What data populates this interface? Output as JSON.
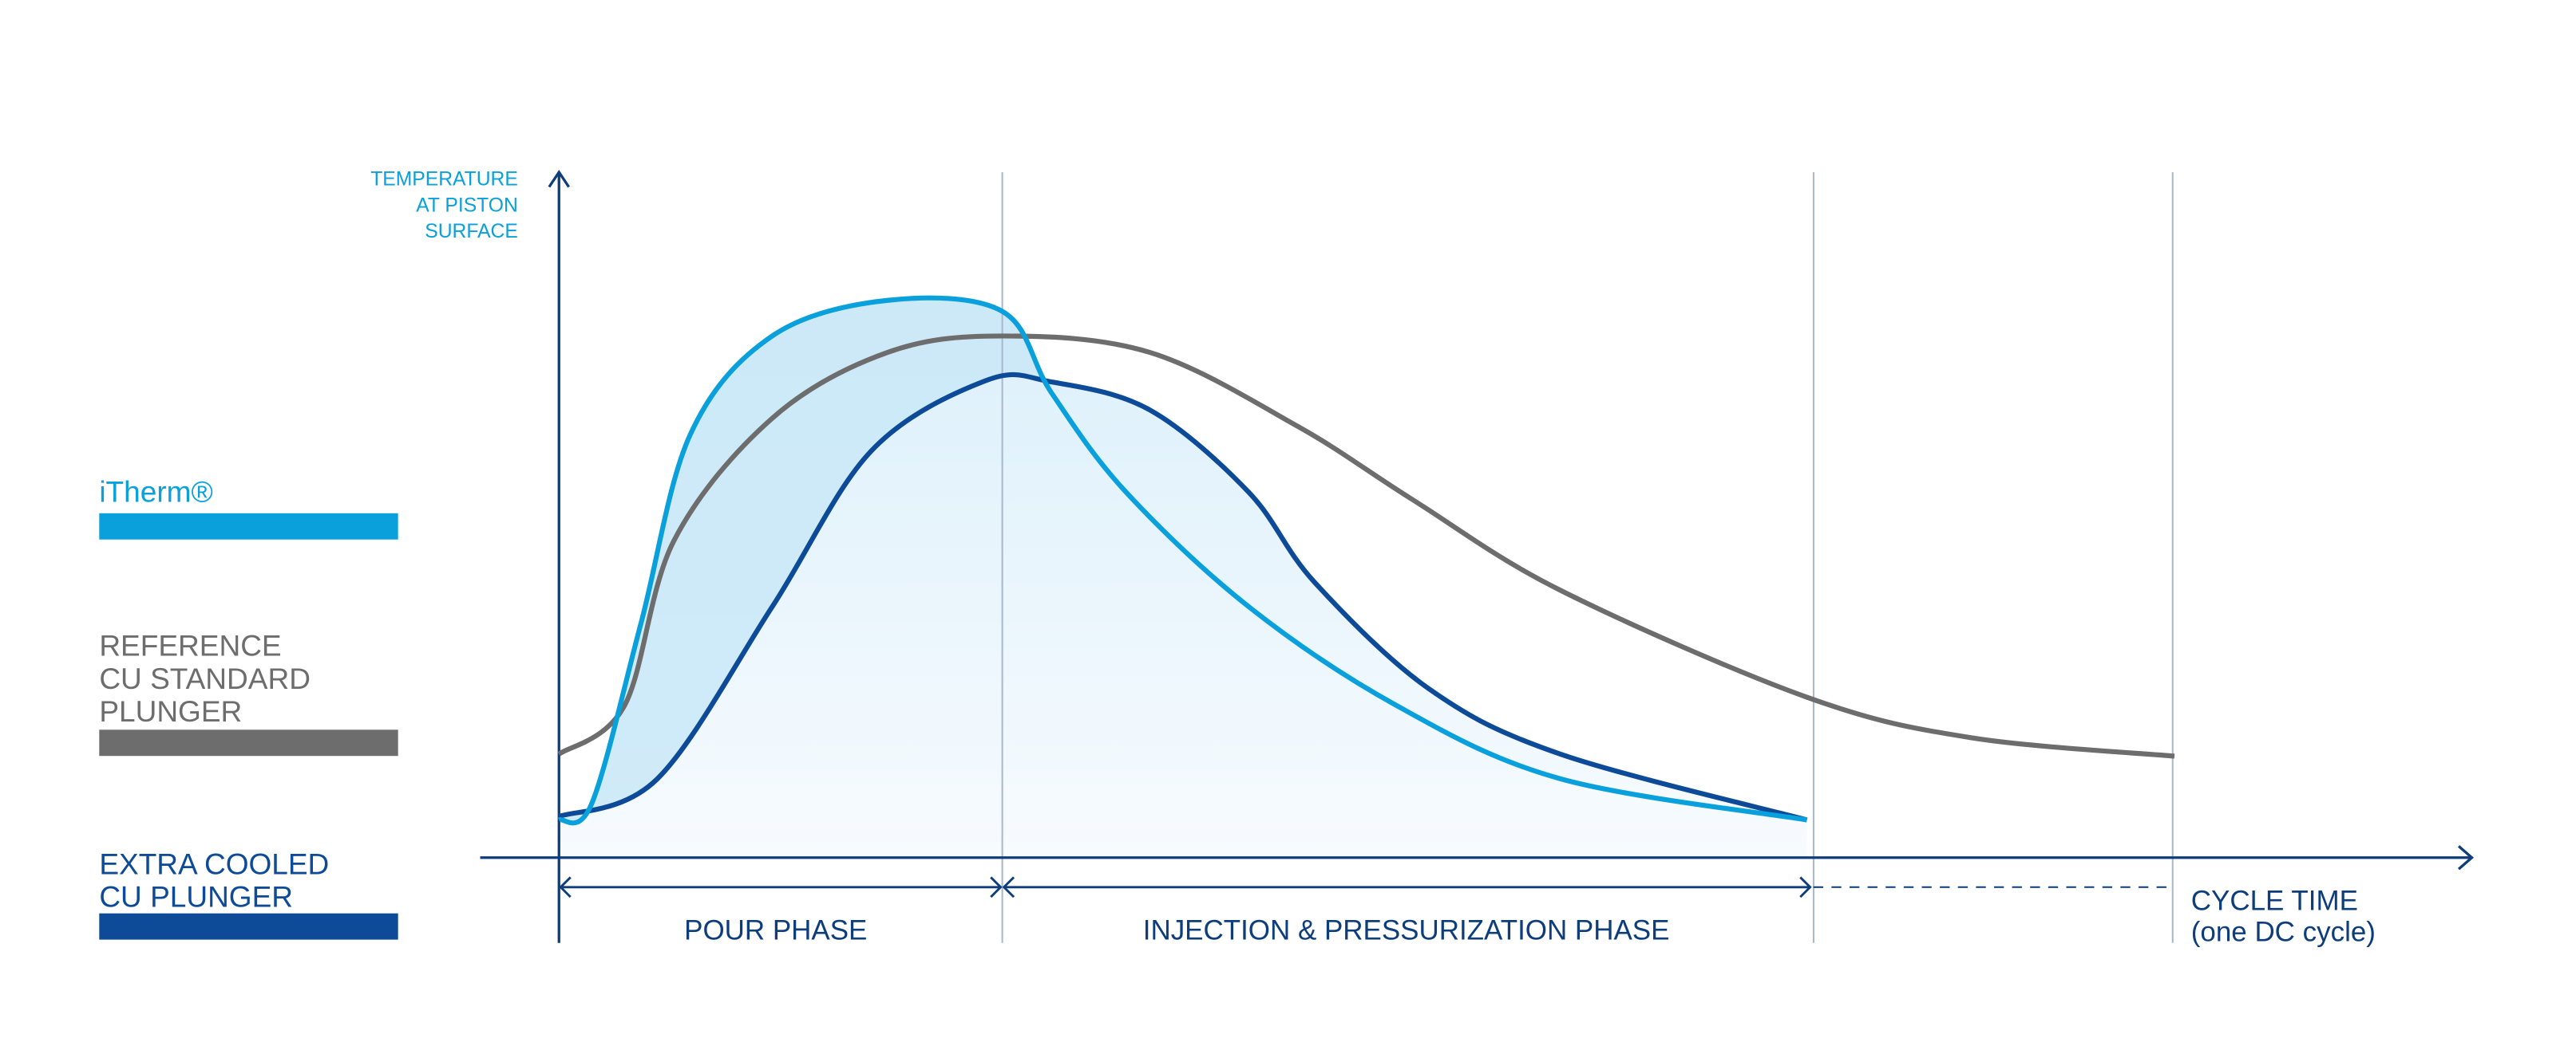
{
  "chart_data": {
    "type": "line",
    "title": "",
    "ylabel": [
      "TEMPERATURE",
      "AT PISTON",
      "SURFACE"
    ],
    "xlabel": [
      "CYCLE TIME",
      "(one DC cycle)"
    ],
    "xlim": [
      0,
      3.64
    ],
    "ylim": [
      0,
      1
    ],
    "grid": false,
    "phase_boundaries": [
      0,
      1,
      2.83,
      3.64
    ],
    "phases": [
      {
        "label": "POUR PHASE",
        "from": 0,
        "to": 1
      },
      {
        "label": "INJECTION & PRESSURIZATION PHASE",
        "from": 1,
        "to": 2.83
      }
    ],
    "legend_placement": "left",
    "series": [
      {
        "name": "iTherm®",
        "color": "#0aa0dc",
        "points": [
          [
            0,
            0.055
          ],
          [
            0.074,
            0.079
          ],
          [
            0.185,
            0.342
          ],
          [
            0.296,
            0.617
          ],
          [
            0.481,
            0.761
          ],
          [
            0.741,
            0.813
          ],
          [
            1,
            0.797
          ],
          [
            1.111,
            0.678
          ],
          [
            1.278,
            0.534
          ],
          [
            1.556,
            0.366
          ],
          [
            1.889,
            0.222
          ],
          [
            2.259,
            0.115
          ],
          [
            2.815,
            0.055
          ]
        ]
      },
      {
        "name": "REFERENCE CU STANDARD PLUNGER",
        "lines": [
          "REFERENCE",
          "CU STANDARD",
          "PLUNGER"
        ],
        "color": "#6d6d6d",
        "points": [
          [
            0,
            0.151
          ],
          [
            0.148,
            0.222
          ],
          [
            0.259,
            0.462
          ],
          [
            0.481,
            0.641
          ],
          [
            0.741,
            0.737
          ],
          [
            1,
            0.761
          ],
          [
            1.333,
            0.737
          ],
          [
            1.667,
            0.629
          ],
          [
            1.926,
            0.522
          ],
          [
            2.259,
            0.39
          ],
          [
            2.815,
            0.234
          ],
          [
            3.185,
            0.175
          ],
          [
            3.644,
            0.148
          ]
        ]
      },
      {
        "name": "EXTRA COOLED CU PLUNGER",
        "lines": [
          "EXTRA COOLED",
          "CU PLUNGER"
        ],
        "color": "#0d4a97",
        "points": [
          [
            0,
            0.06
          ],
          [
            0.222,
            0.115
          ],
          [
            0.481,
            0.366
          ],
          [
            0.704,
            0.593
          ],
          [
            0.963,
            0.696
          ],
          [
            1.111,
            0.694
          ],
          [
            1.333,
            0.653
          ],
          [
            1.556,
            0.533
          ],
          [
            1.704,
            0.402
          ],
          [
            1.963,
            0.246
          ],
          [
            2.259,
            0.151
          ],
          [
            2.815,
            0.055
          ]
        ]
      }
    ]
  }
}
